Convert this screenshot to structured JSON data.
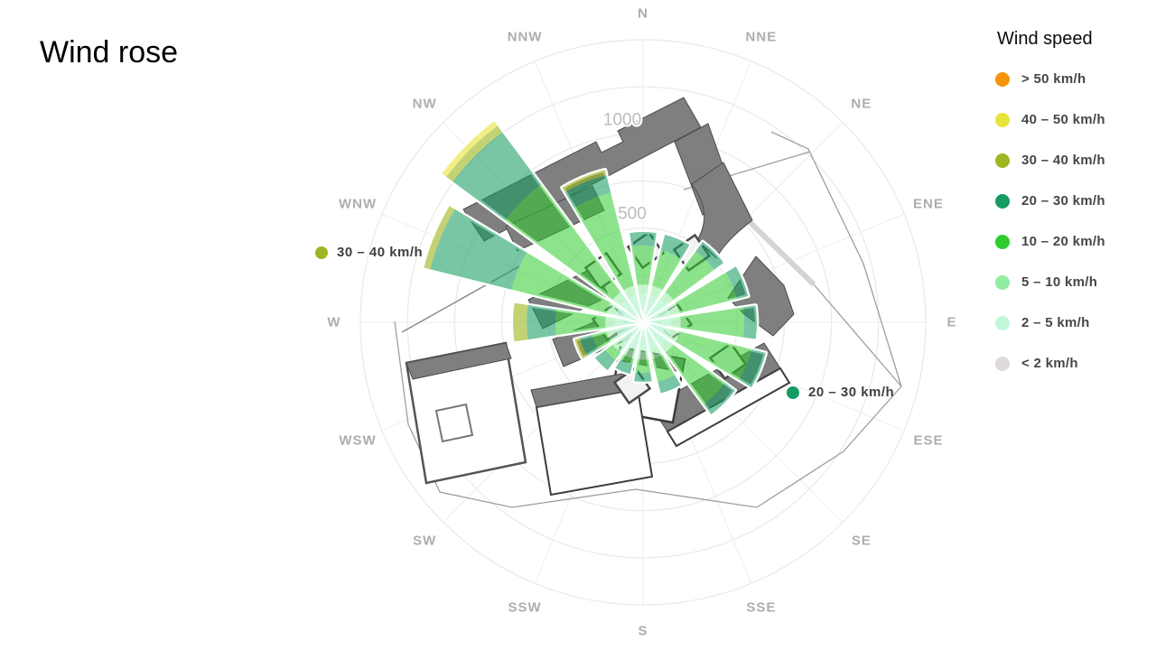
{
  "title": "Wind rose",
  "legend": {
    "title": "Wind speed"
  },
  "annotations": [
    {
      "label": "30 – 40 km/h"
    },
    {
      "label": "20 – 30 km/h"
    }
  ],
  "chart_data": {
    "type": "wind-rose (stacked polar bar over site plan)",
    "title": "Wind rose",
    "legend_title": "Wind speed",
    "directions": [
      "N",
      "NNE",
      "NE",
      "ENE",
      "E",
      "ESE",
      "SE",
      "SSE",
      "S",
      "SSW",
      "SW",
      "WSW",
      "W",
      "WNW",
      "NW",
      "NNW"
    ],
    "radial_axis": {
      "max_value": 1500,
      "ring_step": 250,
      "labeled_rings": [
        500,
        1000
      ]
    },
    "petal_half_angle": 8.5,
    "grid": {
      "rings_visible": true,
      "spokes_visible": true,
      "ring_color": "#e9e9e9"
    },
    "speed_bins": [
      {
        "label": "< 2 km/h",
        "color": "#dedada",
        "values": [
          35,
          35,
          35,
          35,
          35,
          35,
          35,
          35,
          35,
          35,
          35,
          35,
          35,
          35,
          35,
          35
        ]
      },
      {
        "label": "2 – 5 km/h",
        "color": "#c2f7d9",
        "values": [
          115,
          115,
          115,
          115,
          115,
          115,
          115,
          115,
          115,
          115,
          115,
          115,
          115,
          115,
          115,
          115
        ]
      },
      {
        "label": "5 – 10 km/h",
        "color": "#8fee9f",
        "values": [
          50,
          50,
          50,
          50,
          50,
          50,
          50,
          50,
          50,
          50,
          50,
          50,
          50,
          50,
          50,
          50
        ]
      },
      {
        "label": "10 – 20 km/h",
        "color": "#2ecc2e",
        "values": [
          207,
          193,
          270,
          313,
          337,
          394,
          341,
          126,
          68,
          30,
          49,
          78,
          265,
          519,
          710,
          509
        ]
      },
      {
        "label": "20 – 30 km/h",
        "color": "#169c63",
        "values": [
          72,
          86,
          62,
          62,
          67,
          77,
          67,
          62,
          48,
          53,
          67,
          67,
          153,
          445,
          345,
          96
        ]
      },
      {
        "label": "30 – 40 km/h",
        "color": "#9cb71f",
        "values": [
          0,
          0,
          0,
          0,
          0,
          0,
          0,
          0,
          0,
          0,
          0,
          29,
          72,
          34,
          43,
          29
        ]
      },
      {
        "label": "40 – 50 km/h",
        "color": "#e8e33b",
        "values": [
          0,
          0,
          0,
          0,
          0,
          0,
          0,
          0,
          0,
          0,
          0,
          0,
          0,
          0,
          29,
          0
        ]
      },
      {
        "label": "> 50 km/h",
        "color": "#f5930b",
        "values": [
          0,
          0,
          0,
          0,
          0,
          0,
          0,
          0,
          0,
          0,
          0,
          0,
          0,
          0,
          0,
          0
        ]
      }
    ]
  }
}
